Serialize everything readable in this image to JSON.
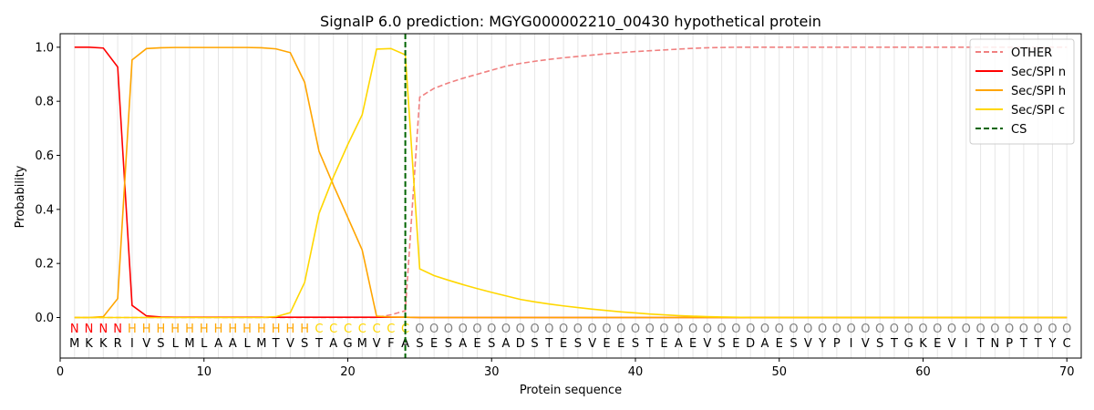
{
  "chart_data": {
    "type": "line",
    "title": "SignalP 6.0 prediction: MGYG000002210_00430 hypothetical protein",
    "xlabel": "Protein sequence",
    "ylabel": "Probability",
    "xlim": [
      0,
      71
    ],
    "ylim": [
      -0.15,
      1.05
    ],
    "xticks": [
      0,
      10,
      20,
      30,
      40,
      50,
      60,
      70
    ],
    "yticks": [
      0.0,
      0.2,
      0.4,
      0.6,
      0.8,
      1.0
    ],
    "ytick_labels": [
      "0.0",
      "0.2",
      "0.4",
      "0.6",
      "0.8",
      "1.0"
    ],
    "legend_position": "top-right",
    "x": [
      1,
      2,
      3,
      4,
      5,
      6,
      7,
      8,
      9,
      10,
      11,
      12,
      13,
      14,
      15,
      16,
      17,
      18,
      19,
      20,
      21,
      22,
      23,
      24,
      25,
      26,
      27,
      28,
      29,
      30,
      31,
      32,
      33,
      34,
      35,
      36,
      37,
      38,
      39,
      40,
      41,
      42,
      43,
      44,
      45,
      46,
      47,
      48,
      49,
      50,
      51,
      52,
      53,
      54,
      55,
      56,
      57,
      58,
      59,
      60,
      61,
      62,
      63,
      64,
      65,
      66,
      67,
      68,
      69,
      70
    ],
    "sequence": [
      "M",
      "K",
      "K",
      "R",
      "I",
      "V",
      "S",
      "L",
      "M",
      "L",
      "A",
      "A",
      "L",
      "M",
      "T",
      "V",
      "S",
      "T",
      "A",
      "G",
      "M",
      "V",
      "F",
      "A",
      "S",
      "E",
      "S",
      "A",
      "E",
      "S",
      "A",
      "D",
      "S",
      "T",
      "E",
      "S",
      "V",
      "E",
      "E",
      "S",
      "T",
      "E",
      "A",
      "E",
      "V",
      "S",
      "E",
      "D",
      "A",
      "E",
      "S",
      "V",
      "Y",
      "P",
      "I",
      "V",
      "S",
      "T",
      "G",
      "K",
      "E",
      "V",
      "I",
      "T",
      "N",
      "P",
      "T",
      "T",
      "Y",
      "C"
    ],
    "region_labels": [
      "N",
      "N",
      "N",
      "N",
      "H",
      "H",
      "H",
      "H",
      "H",
      "H",
      "H",
      "H",
      "H",
      "H",
      "H",
      "H",
      "H",
      "C",
      "C",
      "C",
      "C",
      "C",
      "C",
      "C",
      "O",
      "O",
      "O",
      "O",
      "O",
      "O",
      "O",
      "O",
      "O",
      "O",
      "O",
      "O",
      "O",
      "O",
      "O",
      "O",
      "O",
      "O",
      "O",
      "O",
      "O",
      "O",
      "O",
      "O",
      "O",
      "O",
      "O",
      "O",
      "O",
      "O",
      "O",
      "O",
      "O",
      "O",
      "O",
      "O",
      "O",
      "O",
      "O",
      "O",
      "O",
      "O",
      "O",
      "O",
      "O",
      "O"
    ],
    "region_colors": {
      "N": "#ff0000",
      "H": "#ffa500",
      "C": "#ffd700",
      "O": "#808080"
    },
    "cleavage_site": 24,
    "series": [
      {
        "name": "OTHER",
        "color": "#f08080",
        "dash": true,
        "values": [
          0,
          0,
          0,
          0,
          0,
          0,
          0,
          0,
          0,
          0,
          0,
          0,
          0,
          0,
          0,
          0,
          0,
          0,
          0,
          0,
          0,
          0,
          0.01,
          0.025,
          0.815,
          0.848,
          0.868,
          0.885,
          0.9,
          0.915,
          0.93,
          0.94,
          0.948,
          0.955,
          0.961,
          0.966,
          0.971,
          0.976,
          0.98,
          0.984,
          0.987,
          0.99,
          0.993,
          0.996,
          0.998,
          0.999,
          1,
          1,
          1,
          1,
          1,
          1,
          1,
          1,
          1,
          1,
          1,
          1,
          1,
          1,
          1,
          1,
          1,
          1,
          1,
          1,
          1,
          1,
          1,
          1
        ]
      },
      {
        "name": "Sec/SPI n",
        "color": "#ff0000",
        "dash": false,
        "values": [
          1,
          1,
          0.997,
          0.927,
          0.045,
          0.006,
          0.002,
          0.001,
          0.001,
          0.001,
          0.001,
          0.001,
          0.001,
          0.001,
          0.001,
          0.001,
          0.001,
          0.001,
          0.001,
          0.001,
          0.001,
          0.001,
          0.001,
          0.001,
          0,
          0,
          0,
          0,
          0,
          0,
          0,
          0,
          0,
          0,
          0,
          0,
          0,
          0,
          0,
          0,
          0,
          0,
          0,
          0,
          0,
          0,
          0,
          0,
          0,
          0,
          0,
          0,
          0,
          0,
          0,
          0,
          0,
          0,
          0,
          0,
          0,
          0,
          0,
          0,
          0,
          0,
          0,
          0,
          0,
          0
        ]
      },
      {
        "name": "Sec/SPI h",
        "color": "#ffa500",
        "dash": false,
        "values": [
          0,
          0,
          0.003,
          0.07,
          0.953,
          0.995,
          0.998,
          0.999,
          0.999,
          0.999,
          0.999,
          0.999,
          0.999,
          0.998,
          0.994,
          0.98,
          0.87,
          0.615,
          0.49,
          0.37,
          0.25,
          0.005,
          0.002,
          0.001,
          0,
          0,
          0,
          0,
          0,
          0,
          0,
          0,
          0,
          0,
          0,
          0,
          0,
          0,
          0,
          0,
          0,
          0,
          0,
          0,
          0,
          0,
          0,
          0,
          0,
          0,
          0,
          0,
          0,
          0,
          0,
          0,
          0,
          0,
          0,
          0,
          0,
          0,
          0,
          0,
          0,
          0,
          0,
          0,
          0,
          0
        ]
      },
      {
        "name": "Sec/SPI c",
        "color": "#ffd700",
        "dash": false,
        "values": [
          0,
          0,
          0,
          0,
          0,
          0,
          0,
          0,
          0,
          0,
          0,
          0,
          0,
          0,
          0.003,
          0.018,
          0.13,
          0.385,
          0.52,
          0.64,
          0.75,
          0.993,
          0.995,
          0.972,
          0.18,
          0.155,
          0.138,
          0.122,
          0.107,
          0.093,
          0.08,
          0.067,
          0.058,
          0.05,
          0.043,
          0.037,
          0.031,
          0.026,
          0.021,
          0.017,
          0.013,
          0.01,
          0.007,
          0.005,
          0.003,
          0.002,
          0.001,
          0,
          0,
          0,
          0,
          0,
          0,
          0,
          0,
          0,
          0,
          0,
          0,
          0,
          0,
          0,
          0,
          0,
          0,
          0,
          0,
          0,
          0,
          0
        ]
      },
      {
        "name": "CS",
        "color": "#006400",
        "dash": true,
        "vertical_at": 24
      }
    ]
  }
}
